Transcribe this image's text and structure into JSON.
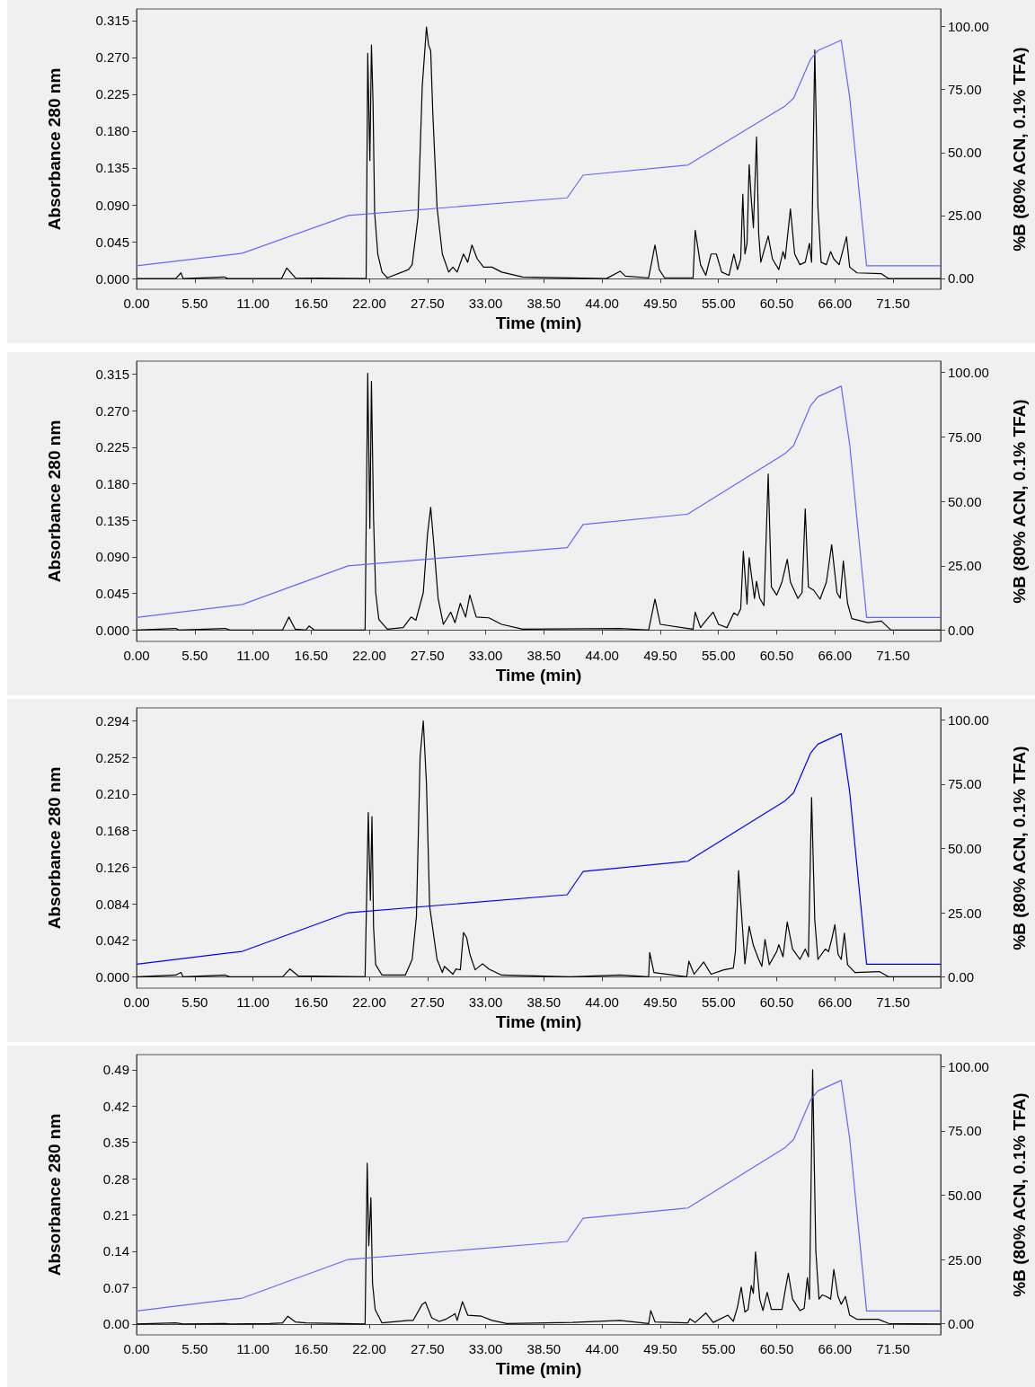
{
  "chart_data": [
    {
      "type": "line",
      "xlabel": "Time (min)",
      "ylabel": "Absorbance 280 nm",
      "y2label": "%B (80% ACN, 0.1% TFA)",
      "xlim": [
        0,
        76
      ],
      "xticks": [
        {
          "value": 0,
          "label": "0.00"
        },
        {
          "value": 5.5,
          "label": "5.50"
        },
        {
          "value": 11,
          "label": "11.00"
        },
        {
          "value": 16.5,
          "label": "16.50"
        },
        {
          "value": 22,
          "label": "22.00"
        },
        {
          "value": 27.5,
          "label": "27.50"
        },
        {
          "value": 33,
          "label": "33.00"
        },
        {
          "value": 38.5,
          "label": "38.50"
        },
        {
          "value": 44,
          "label": "44.00"
        },
        {
          "value": 49.5,
          "label": "49.50"
        },
        {
          "value": 55,
          "label": "55.00"
        },
        {
          "value": 60.5,
          "label": "60.50"
        },
        {
          "value": 66,
          "label": "66.00"
        },
        {
          "value": 71.5,
          "label": "71.50"
        }
      ],
      "ylim": [
        -0.013,
        0.329
      ],
      "yticks": [
        {
          "value": 0,
          "label": "0.000"
        },
        0.045,
        {
          "value": 0.09,
          "label": "0.090"
        },
        0.135,
        {
          "value": 0.18,
          "label": "0.180"
        },
        0.225,
        {
          "value": 0.27,
          "label": "0.270"
        },
        0.315
      ],
      "y2lim": [
        -4.3,
        107
      ],
      "y2ticks": [
        {
          "value": 0,
          "label": "0.00"
        },
        {
          "value": 25,
          "label": "25.00"
        },
        {
          "value": 50,
          "label": "50.00"
        },
        {
          "value": 75,
          "label": "75.00"
        },
        {
          "value": 100,
          "label": "100.00"
        }
      ],
      "series": [
        {
          "color": "#000000",
          "x": [
            0,
            3.7,
            4.2,
            4.4,
            8.3,
            8.6,
            13.7,
            14.2,
            15.0,
            21.7,
            21.85,
            22.05,
            22.2,
            22.35,
            22.5,
            22.8,
            23.2,
            23.7,
            25.7,
            26.05,
            26.6,
            27.0,
            27.4,
            27.6,
            27.8,
            28.0,
            28.4,
            28.9,
            29.5,
            29.9,
            30.3,
            30.9,
            31.3,
            31.7,
            32.2,
            32.8,
            33.6,
            34.5,
            36.5,
            44.4,
            45.7,
            46.2,
            48.4,
            49.0,
            49.4,
            49.9,
            52.6,
            52.8,
            53.3,
            53.8,
            54.3,
            54.8,
            55.3,
            56.0,
            56.45,
            56.8,
            57.1,
            57.3,
            57.5,
            57.7,
            57.9,
            58.1,
            58.3,
            58.6,
            58.8,
            59.0,
            59.7,
            60.1,
            60.7,
            61.1,
            61.3,
            61.8,
            62.2,
            62.7,
            63.2,
            63.6,
            63.8,
            64.1,
            64.4,
            64.7,
            65.2,
            65.6,
            65.9,
            66.4,
            67.1,
            67.4,
            68.1,
            70.4,
            71.1,
            76.0
          ],
          "values": [
            0,
            0,
            0.007,
            0,
            0.002,
            0,
            0,
            0.013,
            0.001,
            0,
            0.275,
            0.144,
            0.285,
            0.215,
            0.081,
            0.03,
            0.008,
            0.001,
            0.011,
            0.017,
            0.075,
            0.234,
            0.307,
            0.285,
            0.278,
            0.202,
            0.087,
            0.03,
            0.008,
            0.014,
            0.008,
            0.03,
            0.02,
            0.041,
            0.024,
            0.014,
            0.014,
            0.008,
            0.002,
            0,
            0.009,
            0.003,
            0.001,
            0.041,
            0.011,
            0.001,
            0.001,
            0.059,
            0.017,
            0.004,
            0.03,
            0.03,
            0.008,
            0.004,
            0.03,
            0.011,
            0.024,
            0.103,
            0.03,
            0.043,
            0.139,
            0.097,
            0.062,
            0.173,
            0.055,
            0.02,
            0.052,
            0.024,
            0.011,
            0.033,
            0.024,
            0.085,
            0.03,
            0.017,
            0.02,
            0.043,
            0.02,
            0.279,
            0.087,
            0.02,
            0.017,
            0.033,
            0.024,
            0.017,
            0.051,
            0.014,
            0.007,
            0.006,
            0,
            0
          ]
        },
        {
          "color": "#6666ff",
          "axis": "y2",
          "x": [
            0,
            10,
            20,
            40.7,
            42.2,
            52.1,
            61.3,
            62.1,
            63.7,
            64.4,
            66.6,
            67.4,
            69.0,
            76
          ],
          "values": [
            5,
            10,
            25,
            32,
            41,
            45,
            68.5,
            71.6,
            87,
            90.5,
            94.6,
            72,
            5,
            5
          ]
        }
      ]
    },
    {
      "type": "line",
      "xlabel": "Time (min)",
      "ylabel": "Absorbance 280 nm",
      "y2label": "%B (80% ACN, 0.1% TFA)",
      "xlim": [
        0,
        76
      ],
      "xticks": [
        {
          "value": 0,
          "label": "0.00"
        },
        {
          "value": 5.5,
          "label": "5.50"
        },
        {
          "value": 11,
          "label": "11.00"
        },
        {
          "value": 16.5,
          "label": "16.50"
        },
        {
          "value": 22,
          "label": "22.00"
        },
        {
          "value": 27.5,
          "label": "27.50"
        },
        {
          "value": 33,
          "label": "33.00"
        },
        {
          "value": 38.5,
          "label": "38.50"
        },
        {
          "value": 44,
          "label": "44.00"
        },
        {
          "value": 49.5,
          "label": "49.50"
        },
        {
          "value": 55,
          "label": "55.00"
        },
        {
          "value": 60.5,
          "label": "60.50"
        },
        {
          "value": 66,
          "label": "66.00"
        },
        {
          "value": 71.5,
          "label": "71.50"
        }
      ],
      "ylim": [
        -0.014,
        0.331
      ],
      "yticks": [
        {
          "value": 0,
          "label": "0.000"
        },
        0.045,
        {
          "value": 0.09,
          "label": "0.090"
        },
        0.135,
        {
          "value": 0.18,
          "label": "0.180"
        },
        0.225,
        {
          "value": 0.27,
          "label": "0.270"
        },
        0.315
      ],
      "y2lim": [
        -4.3,
        104.3
      ],
      "y2ticks": [
        {
          "value": 0,
          "label": "0.00"
        },
        {
          "value": 25,
          "label": "25.00"
        },
        {
          "value": 50,
          "label": "50.00"
        },
        {
          "value": 75,
          "label": "75.00"
        },
        {
          "value": 100,
          "label": "100.00"
        }
      ],
      "series": [
        {
          "color": "#000000",
          "x": [
            0,
            3.7,
            4.0,
            8.4,
            8.8,
            13.8,
            14.4,
            15.0,
            16.0,
            16.3,
            16.8,
            21.6,
            21.85,
            22.05,
            22.2,
            22.4,
            22.6,
            22.9,
            23.7,
            25.2,
            25.95,
            26.4,
            27.1,
            27.5,
            27.8,
            28.1,
            28.5,
            29.0,
            29.7,
            30.1,
            30.6,
            31.1,
            31.5,
            32.1,
            33.3,
            34.5,
            36.5,
            45.7,
            48.4,
            49.0,
            49.5,
            52.6,
            52.8,
            53.3,
            53.9,
            54.5,
            55.0,
            55.8,
            56.45,
            56.8,
            57.1,
            57.35,
            57.7,
            57.9,
            58.2,
            58.4,
            58.6,
            58.9,
            59.3,
            59.7,
            60.0,
            60.5,
            61.0,
            61.5,
            61.8,
            62.5,
            62.9,
            63.2,
            63.5,
            64.0,
            64.6,
            65.2,
            65.7,
            66.2,
            66.5,
            66.8,
            67.2,
            67.6,
            69.1,
            70.4,
            71.3,
            76.0
          ],
          "values": [
            0,
            0.002,
            0,
            0.002,
            0,
            0,
            0.016,
            0.001,
            0,
            0.005,
            0,
            0,
            0.316,
            0.125,
            0.306,
            0.138,
            0.046,
            0.013,
            0.001,
            0.003,
            0.016,
            0.012,
            0.046,
            0.118,
            0.151,
            0.105,
            0.039,
            0.007,
            0.022,
            0.009,
            0.033,
            0.016,
            0.043,
            0.016,
            0.015,
            0.007,
            0.001,
            0.002,
            0,
            0.038,
            0.007,
            0.001,
            0.022,
            0.003,
            0.013,
            0.022,
            0.007,
            0.003,
            0.021,
            0.018,
            0.026,
            0.097,
            0.032,
            0.089,
            0.059,
            0.039,
            0.06,
            0.039,
            0.03,
            0.192,
            0.053,
            0.043,
            0.059,
            0.087,
            0.059,
            0.039,
            0.046,
            0.149,
            0.053,
            0.049,
            0.038,
            0.059,
            0.105,
            0.046,
            0.039,
            0.085,
            0.033,
            0.014,
            0.009,
            0.011,
            0,
            0
          ]
        },
        {
          "color": "#6666ff",
          "axis": "y2",
          "x": [
            0,
            10,
            20,
            40.7,
            42.2,
            52.1,
            61.3,
            62.1,
            63.7,
            64.4,
            66.6,
            67.4,
            69.0,
            76
          ],
          "values": [
            5,
            10,
            25,
            32,
            41,
            45,
            68.5,
            71.6,
            87,
            90.5,
            94.6,
            72,
            5,
            5
          ]
        }
      ]
    },
    {
      "type": "line",
      "xlabel": "Time (min)",
      "ylabel": "Absorbance 280 nm",
      "y2label": "%B (80% ACN, 0.1% TFA)",
      "xlim": [
        0,
        76
      ],
      "xticks": [
        {
          "value": 0,
          "label": "0.00"
        },
        {
          "value": 5.5,
          "label": "5.50"
        },
        {
          "value": 11,
          "label": "11.00"
        },
        {
          "value": 16.5,
          "label": "16.50"
        },
        {
          "value": 22,
          "label": "22.00"
        },
        {
          "value": 27.5,
          "label": "27.50"
        },
        {
          "value": 33,
          "label": "33.00"
        },
        {
          "value": 38.5,
          "label": "38.50"
        },
        {
          "value": 44,
          "label": "44.00"
        },
        {
          "value": 49.5,
          "label": "49.50"
        },
        {
          "value": 55,
          "label": "55.00"
        },
        {
          "value": 60.5,
          "label": "60.50"
        },
        {
          "value": 66,
          "label": "66.00"
        },
        {
          "value": 71.5,
          "label": "71.50"
        }
      ],
      "ylim": [
        -0.013,
        0.309
      ],
      "yticks": [
        {
          "value": 0,
          "label": "0.000"
        },
        0.042,
        0.084,
        0.126,
        0.168,
        {
          "value": 0.21,
          "label": "0.210"
        },
        0.252,
        0.294
      ],
      "y2lim": [
        -4.3,
        104.6
      ],
      "y2ticks": [
        {
          "value": 0,
          "label": "0.00"
        },
        {
          "value": 25,
          "label": "25.00"
        },
        {
          "value": 50,
          "label": "50.00"
        },
        {
          "value": 75,
          "label": "75.00"
        },
        {
          "value": 100,
          "label": "100.00"
        }
      ],
      "series": [
        {
          "color": "#000000",
          "x": [
            0,
            3.7,
            4.2,
            4.4,
            8.4,
            8.8,
            13.8,
            14.5,
            15.3,
            21.6,
            21.9,
            22.1,
            22.25,
            22.4,
            22.6,
            23.2,
            25.4,
            26.05,
            26.45,
            26.8,
            27.1,
            27.4,
            27.7,
            28.4,
            28.9,
            29.1,
            29.9,
            30.2,
            30.6,
            30.9,
            31.2,
            31.5,
            32.0,
            32.7,
            33.3,
            34.5,
            41.0,
            45.7,
            48.4,
            48.5,
            48.9,
            52.0,
            52.2,
            52.7,
            53.6,
            54.3,
            55.5,
            56.4,
            56.6,
            56.9,
            57.3,
            57.5,
            57.7,
            57.9,
            58.3,
            58.8,
            59.1,
            59.4,
            59.8,
            60.5,
            60.7,
            61.1,
            61.5,
            62.0,
            62.7,
            63.2,
            63.5,
            63.8,
            64.1,
            64.4,
            65.1,
            65.4,
            65.7,
            66.0,
            66.3,
            66.6,
            66.9,
            67.2,
            67.9,
            70.2,
            71.1,
            76.0
          ],
          "values": [
            0,
            0.002,
            0.005,
            0,
            0.002,
            0,
            0,
            0.009,
            0.001,
            0,
            0.189,
            0.088,
            0.184,
            0.057,
            0.014,
            0.002,
            0.002,
            0.02,
            0.069,
            0.253,
            0.294,
            0.222,
            0.081,
            0.02,
            0.005,
            0.012,
            0.003,
            0.009,
            0.008,
            0.051,
            0.045,
            0.026,
            0.008,
            0.015,
            0.009,
            0.002,
            0,
            0.002,
            0,
            0.028,
            0.005,
            0,
            0.018,
            0.003,
            0.017,
            0.003,
            0.008,
            0.01,
            0.029,
            0.122,
            0.051,
            0.015,
            0.036,
            0.058,
            0.036,
            0.02,
            0.012,
            0.043,
            0.014,
            0.029,
            0.037,
            0.023,
            0.063,
            0.032,
            0.02,
            0.032,
            0.023,
            0.206,
            0.066,
            0.02,
            0.032,
            0.029,
            0.043,
            0.06,
            0.026,
            0.02,
            0.05,
            0.014,
            0.005,
            0.006,
            0,
            0
          ]
        },
        {
          "color": "#0000ff",
          "axis": "y2",
          "x": [
            0,
            10,
            20,
            40.7,
            42.2,
            52.1,
            61.3,
            62.1,
            63.7,
            64.4,
            66.6,
            67.4,
            69.0,
            76
          ],
          "values": [
            5,
            10,
            25,
            32,
            41,
            45,
            68.5,
            71.6,
            87,
            90.5,
            94.6,
            72,
            5,
            5
          ]
        }
      ]
    },
    {
      "type": "line",
      "xlabel": "Time (min)",
      "ylabel": "Absorbance 280 nm",
      "y2label": "%B (80% ACN, 0.1% TFA)",
      "xlim": [
        0,
        76
      ],
      "xticks": [
        {
          "value": 0,
          "label": "0.00"
        },
        {
          "value": 5.5,
          "label": "5.50"
        },
        {
          "value": 11,
          "label": "11.00"
        },
        {
          "value": 16.5,
          "label": "16.50"
        },
        {
          "value": 22,
          "label": "22.00"
        },
        {
          "value": 27.5,
          "label": "27.50"
        },
        {
          "value": 33,
          "label": "33.00"
        },
        {
          "value": 38.5,
          "label": "38.50"
        },
        {
          "value": 44,
          "label": "44.00"
        },
        {
          "value": 49.5,
          "label": "49.50"
        },
        {
          "value": 55,
          "label": "55.00"
        },
        {
          "value": 60.5,
          "label": "60.50"
        },
        {
          "value": 66,
          "label": "66.00"
        },
        {
          "value": 71.5,
          "label": "71.50"
        }
      ],
      "ylim": [
        -0.021,
        0.519
      ],
      "yticks": [
        {
          "value": 0,
          "label": "0.00"
        },
        0.07,
        0.14,
        0.21,
        0.28,
        0.35,
        0.42,
        0.49
      ],
      "y2lim": [
        -4.3,
        104.6
      ],
      "y2ticks": [
        {
          "value": 0,
          "label": "0.00"
        },
        {
          "value": 25,
          "label": "25.00"
        },
        {
          "value": 50,
          "label": "50.00"
        },
        {
          "value": 75,
          "label": "75.00"
        },
        {
          "value": 100,
          "label": "100.00"
        }
      ],
      "series": [
        {
          "color": "#000000",
          "x": [
            0,
            3.7,
            4.4,
            8.4,
            8.8,
            12.6,
            13.8,
            14.3,
            15.0,
            16.0,
            21.6,
            21.8,
            21.95,
            22.15,
            22.3,
            22.55,
            23.2,
            25.7,
            26.15,
            27.0,
            27.3,
            27.9,
            28.6,
            29.2,
            29.9,
            30.1,
            30.3,
            30.8,
            31.3,
            32.6,
            33.6,
            35.0,
            41.2,
            45.7,
            48.4,
            48.6,
            49.0,
            52.1,
            52.3,
            52.8,
            53.8,
            54.5,
            55.9,
            56.4,
            56.8,
            57.15,
            57.5,
            57.8,
            58.1,
            58.3,
            58.5,
            58.9,
            59.2,
            59.6,
            60.0,
            61.0,
            61.3,
            61.6,
            62.0,
            62.7,
            63.1,
            63.4,
            63.6,
            63.9,
            64.2,
            64.5,
            64.8,
            65.2,
            65.6,
            65.9,
            66.3,
            66.6,
            67.0,
            67.4,
            68.1,
            70.1,
            71.1,
            76.0
          ],
          "values": [
            0,
            0.002,
            0,
            0.001,
            0,
            0.001,
            0.002,
            0.015,
            0.004,
            0.002,
            0,
            0.31,
            0.151,
            0.243,
            0.079,
            0.028,
            0.002,
            0.007,
            0.007,
            0.038,
            0.042,
            0.012,
            0.005,
            0.009,
            0.017,
            0.02,
            0.007,
            0.043,
            0.017,
            0.015,
            0.007,
            0.001,
            0.003,
            0.007,
            0.001,
            0.026,
            0.004,
            0.002,
            0.01,
            0.003,
            0.021,
            0.003,
            0.017,
            0.005,
            0.033,
            0.071,
            0.023,
            0.028,
            0.074,
            0.059,
            0.139,
            0.048,
            0.026,
            0.061,
            0.028,
            0.028,
            0.064,
            0.098,
            0.048,
            0.026,
            0.03,
            0.089,
            0.048,
            0.49,
            0.141,
            0.048,
            0.056,
            0.053,
            0.048,
            0.105,
            0.053,
            0.038,
            0.053,
            0.017,
            0.009,
            0.009,
            0.001,
            0
          ]
        },
        {
          "color": "#6666ff",
          "axis": "y2",
          "x": [
            0,
            10,
            20,
            40.7,
            42.2,
            52.1,
            61.3,
            62.1,
            63.7,
            64.4,
            66.6,
            67.4,
            69.0,
            76
          ],
          "values": [
            5,
            10,
            25,
            32,
            41,
            45,
            68.5,
            71.6,
            87,
            90.5,
            94.6,
            72,
            5,
            5
          ]
        }
      ]
    }
  ]
}
